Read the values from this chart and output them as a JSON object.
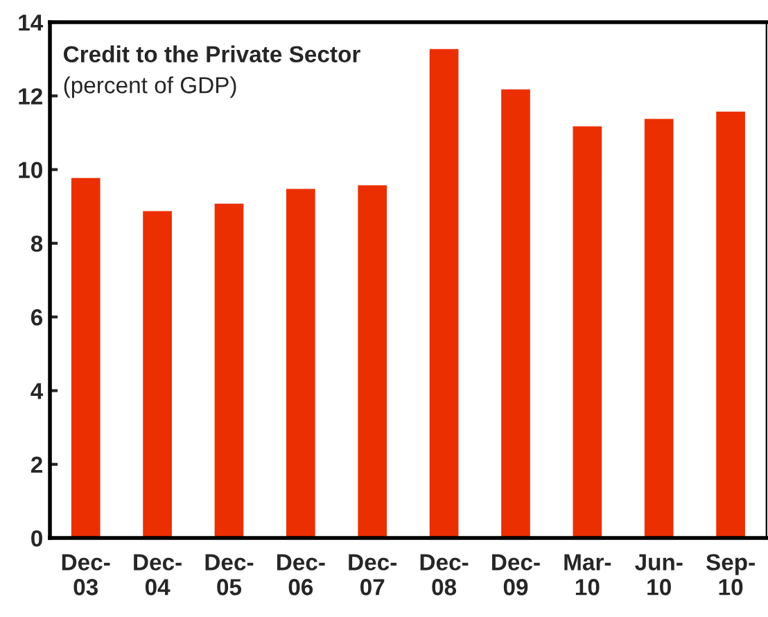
{
  "chart_data": {
    "type": "bar",
    "title": "Credit to the Private Sector",
    "subtitle": "(percent of GDP)",
    "categories": [
      "Dec-\n03",
      "Dec-\n04",
      "Dec-\n05",
      "Dec-\n06",
      "Dec-\n07",
      "Dec-\n08",
      "Dec-\n09",
      "Mar-\n10",
      "Jun-\n10",
      "Sep-\n10"
    ],
    "values": [
      9.8,
      8.9,
      9.1,
      9.5,
      9.6,
      13.3,
      12.2,
      11.2,
      11.4,
      11.6
    ],
    "color": "#ec2f00",
    "ylim": [
      0,
      14
    ],
    "yticks": [
      0,
      2,
      4,
      6,
      8,
      10,
      12,
      14
    ],
    "grid": false
  }
}
